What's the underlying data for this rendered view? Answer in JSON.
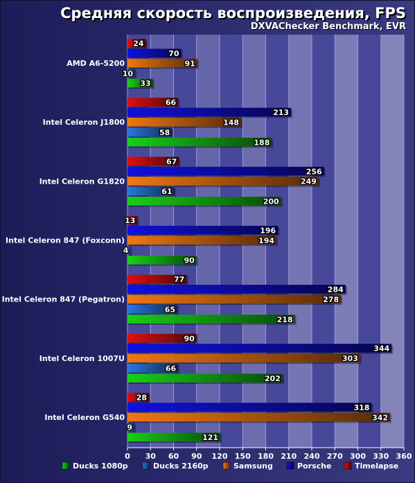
{
  "chart_data": {
    "type": "bar",
    "orientation": "horizontal",
    "title": "Средняя скорость воспроизведения, FPS",
    "subtitle": "DXVAChecker Benchmark, EVR",
    "categories": [
      "AMD A6-5200",
      "Intel Celeron J1800",
      "Intel Celeron G1820",
      "Intel Celeron 847 (Foxconn)",
      "Intel Celeron 847 (Pegatron)",
      "Intel Celeron 1007U",
      "Intel Celeron G540"
    ],
    "series": [
      {
        "name": "Timelapse",
        "color": "#e01010",
        "values": [
          24,
          66,
          67,
          13,
          77,
          90,
          28
        ]
      },
      {
        "name": "Porsche",
        "color": "#1010e0",
        "values": [
          70,
          213,
          256,
          196,
          284,
          344,
          318
        ]
      },
      {
        "name": "Samsung",
        "color": "#f07810",
        "values": [
          91,
          148,
          249,
          194,
          278,
          303,
          342
        ]
      },
      {
        "name": "Ducks 2160p",
        "color": "#2878e0",
        "values": [
          10,
          58,
          61,
          4,
          65,
          66,
          9
        ]
      },
      {
        "name": "Ducks 1080p",
        "color": "#18d018",
        "values": [
          33,
          188,
          200,
          90,
          218,
          202,
          121
        ]
      }
    ],
    "legend_order": [
      "Ducks 1080p",
      "Ducks 2160p",
      "Samsung",
      "Porsche",
      "Timelapse"
    ],
    "xlim": [
      0,
      360
    ],
    "xticks": [
      0,
      30,
      60,
      90,
      120,
      150,
      180,
      210,
      240,
      270,
      300,
      330,
      360
    ],
    "grid": true,
    "legend_position": "bottom"
  }
}
